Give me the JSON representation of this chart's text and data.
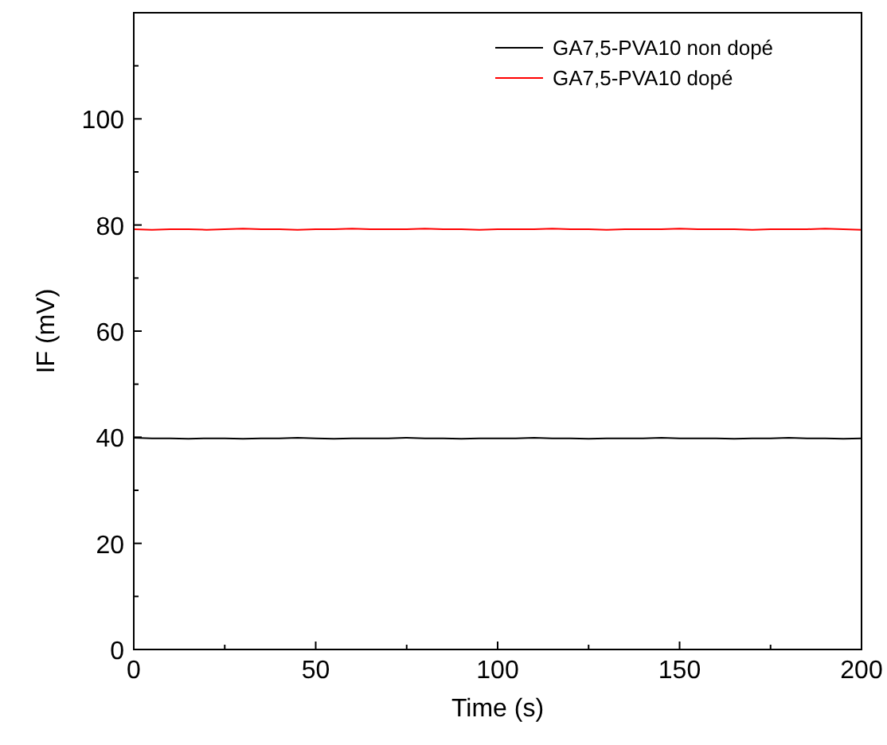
{
  "chart_data": {
    "type": "line",
    "xlabel": "Time (s)",
    "ylabel": "IF (mV)",
    "xlim": [
      0,
      200
    ],
    "ylim": [
      0,
      120
    ],
    "xticks": [
      0,
      {
        "value": 25,
        "label": null
      },
      50,
      {
        "value": 75,
        "label": null
      },
      100,
      {
        "value": 125,
        "label": null
      },
      150,
      {
        "value": 175,
        "label": null
      },
      200
    ],
    "yticks": [
      0,
      {
        "value": 10,
        "label": null
      },
      20,
      {
        "value": 30,
        "label": null
      },
      40,
      {
        "value": 50,
        "label": null
      },
      60,
      {
        "value": 70,
        "label": null
      },
      80,
      {
        "value": 90,
        "label": null
      },
      100,
      {
        "value": 110,
        "label": null
      }
    ],
    "x": [
      0,
      5,
      10,
      15,
      20,
      25,
      30,
      35,
      40,
      45,
      50,
      55,
      60,
      65,
      70,
      75,
      80,
      85,
      90,
      95,
      100,
      105,
      110,
      115,
      120,
      125,
      130,
      135,
      140,
      145,
      150,
      155,
      160,
      165,
      170,
      175,
      180,
      185,
      190,
      195,
      200
    ],
    "series": [
      {
        "name": "GA7,5-PVA10 non dopé",
        "color": "#000000",
        "values": [
          39.9,
          39.8,
          39.8,
          39.7,
          39.8,
          39.8,
          39.7,
          39.8,
          39.8,
          39.9,
          39.8,
          39.7,
          39.8,
          39.8,
          39.8,
          39.9,
          39.8,
          39.8,
          39.7,
          39.8,
          39.8,
          39.8,
          39.9,
          39.8,
          39.8,
          39.7,
          39.8,
          39.8,
          39.8,
          39.9,
          39.8,
          39.8,
          39.8,
          39.7,
          39.8,
          39.8,
          39.9,
          39.8,
          39.8,
          39.7,
          39.8
        ]
      },
      {
        "name": "GA7,5-PVA10 dopé",
        "color": "#ff0000",
        "values": [
          79.2,
          79.1,
          79.2,
          79.2,
          79.1,
          79.2,
          79.3,
          79.2,
          79.2,
          79.1,
          79.2,
          79.2,
          79.3,
          79.2,
          79.2,
          79.2,
          79.3,
          79.2,
          79.2,
          79.1,
          79.2,
          79.2,
          79.2,
          79.3,
          79.2,
          79.2,
          79.1,
          79.2,
          79.2,
          79.2,
          79.3,
          79.2,
          79.2,
          79.2,
          79.1,
          79.2,
          79.2,
          79.2,
          79.3,
          79.2,
          79.1
        ]
      }
    ],
    "legend": "top right",
    "grid": false,
    "marker": "none",
    "line_style": "solid"
  }
}
